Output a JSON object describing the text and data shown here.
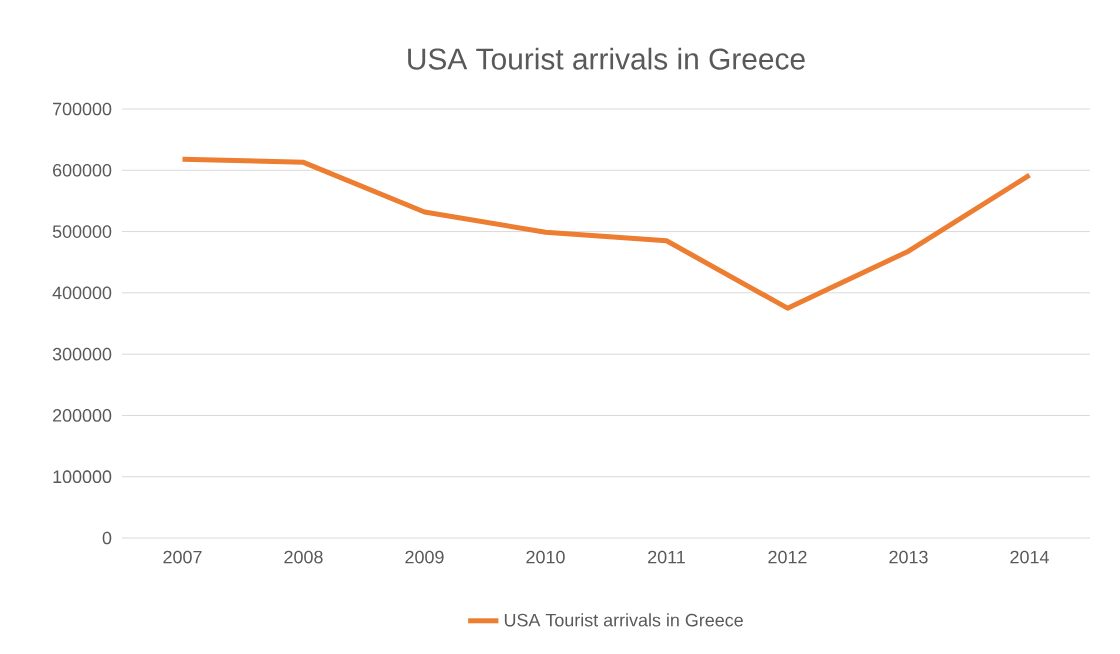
{
  "chart_data": {
    "type": "line",
    "title": "USA Tourist arrivals in Greece",
    "categories": [
      "2007",
      "2008",
      "2009",
      "2010",
      "2011",
      "2012",
      "2013",
      "2014"
    ],
    "series": [
      {
        "name": "USA Tourist arrivals in Greece",
        "color": "#ed7d31",
        "values": [
          618000,
          613000,
          532000,
          499000,
          485000,
          375000,
          468000,
          592000
        ]
      }
    ],
    "ylim": [
      0,
      700000
    ],
    "yticks": [
      0,
      100000,
      200000,
      300000,
      400000,
      500000,
      600000,
      700000
    ],
    "grid": "y",
    "legend": "bottom",
    "line_style": "solid"
  }
}
